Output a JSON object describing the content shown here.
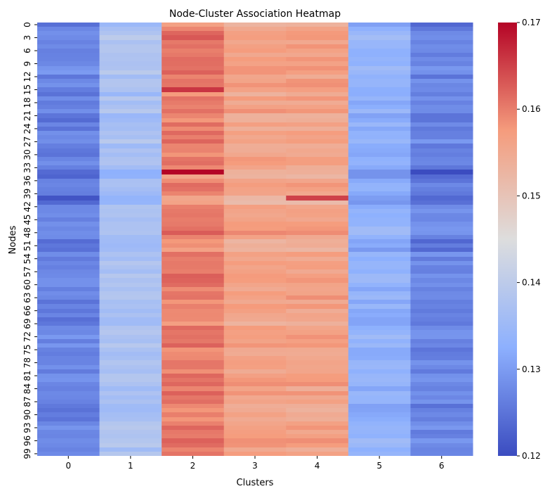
{
  "chart_data": {
    "type": "heatmap",
    "title": "Node-Cluster Association Heatmap",
    "xlabel": "Clusters",
    "ylabel": "Nodes",
    "x_tick_labels": [
      "0",
      "1",
      "2",
      "3",
      "4",
      "5",
      "6"
    ],
    "y_tick_labels": [
      "0",
      "3",
      "6",
      "9",
      "12",
      "15",
      "18",
      "21",
      "24",
      "27",
      "30",
      "33",
      "36",
      "39",
      "42",
      "45",
      "48",
      "51",
      "54",
      "57",
      "60",
      "63",
      "66",
      "69",
      "72",
      "75",
      "78",
      "81",
      "84",
      "87",
      "90",
      "93",
      "96",
      "99"
    ],
    "colormap": "coolwarm",
    "colorbar": {
      "vmin": 0.12,
      "vmax": 0.17,
      "tick_labels": [
        "0.12",
        "0.13",
        "0.14",
        "0.15",
        "0.16",
        "0.17"
      ]
    },
    "row_count": 100,
    "column_means": [
      0.128,
      0.138,
      0.161,
      0.157,
      0.157,
      0.134,
      0.128
    ],
    "row_offsets": [
      -0.0035,
      -0.0015,
      0.0005,
      0.001,
      -0.001,
      0.0005,
      -0.0005,
      -0.001,
      0.0,
      -0.0005,
      0.0005,
      0.001,
      -0.002,
      0.0,
      0.0005,
      -0.001,
      -0.0025,
      0.001,
      -0.0015,
      -0.0005,
      0.0005,
      -0.0025,
      -0.003,
      -0.0005,
      -0.003,
      -0.0005,
      -0.0015,
      0.0005,
      -0.002,
      -0.0015,
      -0.0025,
      0.0,
      0.0005,
      -0.002,
      -0.004,
      -0.0045,
      -0.002,
      0.0,
      -0.001,
      -0.002,
      -0.0045,
      -0.0045,
      -0.001,
      0.0,
      -0.0005,
      -0.001,
      0.0005,
      0.0005,
      0.001,
      -0.001,
      -0.0035,
      -0.002,
      -0.0035,
      0.0005,
      -0.002,
      0.0,
      -0.0005,
      -0.001,
      0.001,
      0.0005,
      -0.0005,
      -0.002,
      0.0,
      0.0005,
      -0.0025,
      0.0,
      -0.0015,
      -0.001,
      -0.0025,
      -0.003,
      -0.0005,
      0.0,
      0.0005,
      -0.001,
      0.0005,
      -0.002,
      -0.0015,
      -0.001,
      0.0,
      -0.0005,
      -0.0015,
      0.0,
      0.0,
      0.0005,
      -0.002,
      0.0005,
      -0.001,
      0.0,
      -0.0025,
      -0.0025,
      -0.0015,
      -0.002,
      -0.0005,
      0.0005,
      -0.001,
      -0.0005,
      0.001,
      0.0005,
      -0.002,
      0.0
    ],
    "cell_noise": 0.0012,
    "highlighted_cells": [
      {
        "row": 15,
        "column": 2,
        "value": 0.166
      },
      {
        "row": 34,
        "column": 2,
        "value": 0.17
      },
      {
        "row": 34,
        "column": 6,
        "value": 0.12
      },
      {
        "row": 40,
        "column": 0,
        "value": 0.121
      },
      {
        "row": 40,
        "column": 4,
        "value": 0.165
      }
    ]
  }
}
